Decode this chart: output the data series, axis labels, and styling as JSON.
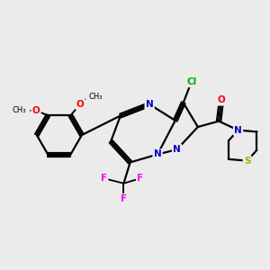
{
  "bg_color": "#ebebeb",
  "bond_color": "#000000",
  "bond_width": 1.6,
  "atom_colors": {
    "N": "#0000cc",
    "O": "#ff0000",
    "F": "#ff00ff",
    "Cl": "#00aa00",
    "S": "#aaaa00",
    "C": "#000000"
  },
  "font_size": 7.5,
  "title": ""
}
